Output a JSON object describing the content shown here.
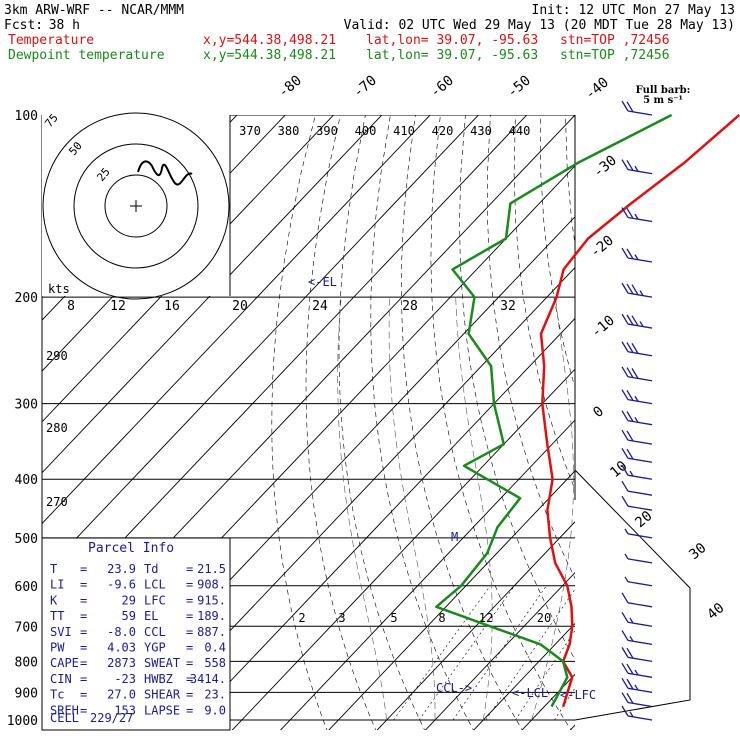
{
  "header": {
    "model": "3km ARW-WRF -- NCAR/MMM",
    "init": "Init: 12 UTC Mon 27 May 13",
    "fcst_label": "Fcst:",
    "fcst_value": "38 h",
    "valid": "Valid: 02 UTC Wed 29 May 13 (20 MDT Tue 28 May 13)",
    "temp_label": "Temperature",
    "dew_label": "Dewpoint temperature",
    "xy": "x,y=544.38,498.21",
    "latlon": "lat,lon= 39.07, -95.63",
    "stn": "stn=TOP ,72456",
    "barb_note_1": "Full barb:",
    "barb_note_2": "5 m s⁻¹"
  },
  "colors": {
    "temperature": "#e01010",
    "dewpoint": "#1a8a1a",
    "info": "#1a1a9e",
    "barbs": "#1a1a9e"
  },
  "chart_data": {
    "type": "line",
    "xlabel": "",
    "ylabel": "",
    "y_pressure_ticks": [
      "100",
      "200",
      "300",
      "400",
      "500",
      "600",
      "700",
      "800",
      "900",
      "1000"
    ],
    "isotherm_labels_top": [
      "-80",
      "-70",
      "-60",
      "-50",
      "-40"
    ],
    "isotherm_labels_right": [
      "-30",
      "-20",
      "-10",
      "0",
      "10",
      "20",
      "30",
      "40"
    ],
    "theta_labels": [
      "370",
      "380",
      "390",
      "400",
      "410",
      "420",
      "430",
      "440"
    ],
    "left_theta_labels": [
      "290",
      "280",
      "270"
    ],
    "hodograph": {
      "rings": [
        "75",
        "50",
        "25"
      ],
      "units_label": "kts",
      "x_ticks": [
        "8",
        "12",
        "16",
        "20",
        "24",
        "28",
        "32"
      ]
    },
    "mixing_ratio_labels": [
      "2",
      "3",
      "5",
      "8",
      "12",
      "20"
    ],
    "level_markers": [
      "<-EL",
      "CCL->",
      "<-LCL",
      "<-LFC"
    ],
    "series": [
      {
        "name": "Temperature",
        "x": [
          -56,
          -58,
          -61,
          -63,
          -62,
          -58,
          -54,
          -47,
          -40,
          -31,
          -23,
          -18,
          -12,
          -6,
          1,
          6,
          10,
          13,
          15,
          20,
          23.9
        ],
        "y": [
          100,
          120,
          140,
          160,
          180,
          200,
          230,
          260,
          300,
          350,
          400,
          450,
          500,
          550,
          600,
          650,
          700,
          750,
          800,
          850,
          950
        ]
      },
      {
        "name": "Dewpoint temperature",
        "x": [
          -70,
          -80,
          -86,
          -80,
          -85,
          -75,
          -69,
          -58,
          -50,
          -40,
          -44,
          -26,
          -25,
          -22,
          -21,
          -22,
          -7,
          7,
          15,
          19,
          21.5
        ],
        "y": [
          100,
          120,
          140,
          160,
          180,
          200,
          230,
          260,
          300,
          350,
          380,
          430,
          480,
          530,
          600,
          650,
          700,
          750,
          800,
          850,
          950
        ]
      }
    ],
    "wind_barbs_pressure": [
      100,
      125,
      150,
      175,
      200,
      225,
      250,
      275,
      300,
      325,
      350,
      375,
      400,
      425,
      450,
      500,
      550,
      600,
      650,
      700,
      750,
      800,
      850,
      900,
      950,
      1000
    ],
    "wind_barbs_speed_ms": [
      12,
      14,
      13,
      14,
      18,
      19,
      17,
      15,
      13,
      13,
      12,
      11,
      9,
      7,
      5,
      4,
      3,
      4,
      6,
      8,
      8,
      10,
      13,
      14,
      12,
      8
    ]
  },
  "parcel_info": {
    "title": "Parcel Info",
    "rows": [
      {
        "k1": "T",
        "v1": "23.9",
        "k2": "Td",
        "v2": "21.5"
      },
      {
        "k1": "LI",
        "v1": "-9.6",
        "k2": "LCL",
        "v2": "908."
      },
      {
        "k1": "K",
        "v1": "29",
        "k2": "LFC",
        "v2": "915."
      },
      {
        "k1": "TT",
        "v1": "59",
        "k2": "EL",
        "v2": "189."
      },
      {
        "k1": "SVI",
        "v1": "-8.0",
        "k2": "CCL",
        "v2": "887."
      },
      {
        "k1": "PW",
        "v1": "4.03",
        "k2": "YGP",
        "v2": "0.4"
      },
      {
        "k1": "CAPE",
        "v1": "2873",
        "k2": "SWEAT",
        "v2": "558"
      },
      {
        "k1": "CIN",
        "v1": "-23",
        "k2": "HWBZ",
        "v2": "3414."
      },
      {
        "k1": "Tc",
        "v1": "27.0",
        "k2": "SHEAR",
        "v2": "23."
      },
      {
        "k1": "SREH",
        "v1": "153",
        "k2": "LAPSE",
        "v2": "9.0"
      }
    ],
    "cell_label": "CELL",
    "cell_value": "229/27"
  }
}
